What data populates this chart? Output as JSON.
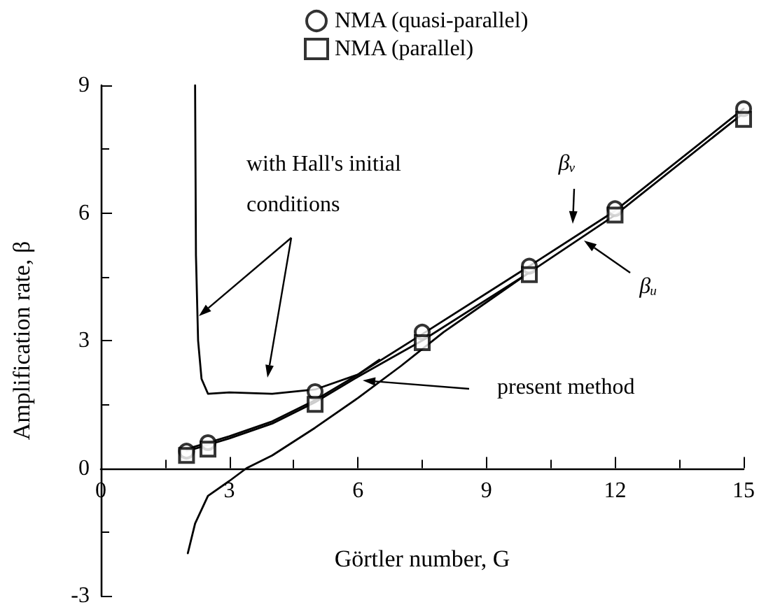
{
  "chart_data": {
    "type": "line",
    "xlabel": "Görtler number, G",
    "ylabel": "Amplification rate, β",
    "xlim": [
      0,
      15
    ],
    "ylim": [
      -3,
      9
    ],
    "xticks": [
      0,
      3,
      6,
      9,
      12,
      15
    ],
    "yticks": [
      -3,
      0,
      3,
      6,
      9
    ],
    "grid": false,
    "legend": "top",
    "line_style": "solid",
    "marker": "none",
    "series": [
      {
        "color": "#000000",
        "x": [
          2.2,
          2.22,
          2.27,
          2.35,
          2.5,
          3,
          4,
          5,
          6,
          6.5
        ],
        "values": [
          9,
          5,
          3,
          2.1,
          1.75,
          1.78,
          1.75,
          1.85,
          2.2,
          2.55
        ]
      },
      {
        "color": "#000000",
        "x": [
          2.03,
          2.2,
          2.5,
          3,
          3.4,
          4,
          5,
          6,
          7,
          8,
          9,
          10
        ],
        "values": [
          -2,
          -1.3,
          -0.65,
          -0.3,
          0,
          0.3,
          0.95,
          1.65,
          2.4,
          3.2,
          3.9,
          4.6
        ]
      },
      {
        "color": "#000000",
        "x": [
          2,
          2.5,
          3,
          4,
          5,
          6,
          7.5,
          10,
          12,
          15
        ],
        "values": [
          0.45,
          0.6,
          0.75,
          1.1,
          1.6,
          2.2,
          3.15,
          4.75,
          6.05,
          8.45
        ]
      },
      {
        "color": "#000000",
        "x": [
          2,
          2.5,
          3,
          4,
          5,
          6,
          7.5,
          10,
          12,
          15
        ],
        "values": [
          0.4,
          0.55,
          0.7,
          1.05,
          1.55,
          2.15,
          3.0,
          4.6,
          5.95,
          8.35
        ]
      },
      {
        "type": "scatter",
        "name": "NMA (quasi-parallel)",
        "marker": "circle",
        "color": "#000000",
        "x": [
          2,
          2.5,
          5,
          7.5,
          10,
          12,
          15
        ],
        "values": [
          0.4,
          0.6,
          1.8,
          3.2,
          4.75,
          6.1,
          8.45
        ]
      },
      {
        "type": "scatter",
        "name": "NMA (parallel)",
        "marker": "square",
        "color": "#000000",
        "x": [
          2,
          2.5,
          5,
          7.5,
          10,
          12,
          15
        ],
        "values": [
          0.3,
          0.45,
          1.5,
          2.95,
          4.55,
          5.95,
          8.2
        ]
      }
    ],
    "annotations": [
      "with Hall's initial conditions",
      "present method",
      "βᵥ",
      "βᵤ"
    ]
  }
}
